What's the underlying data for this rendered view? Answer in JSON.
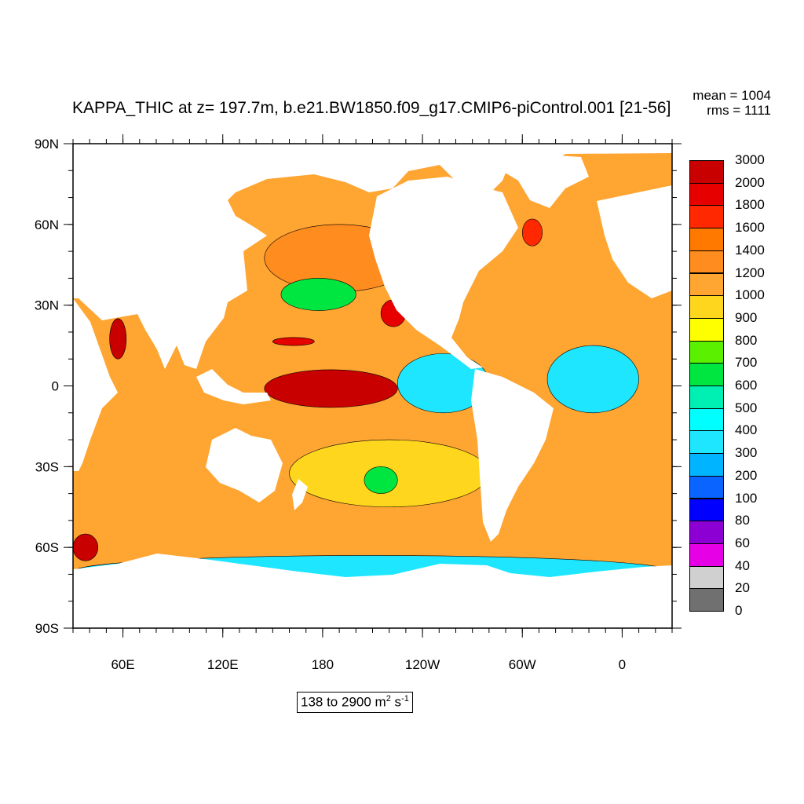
{
  "title": "KAPPA_THIC at z= 197.7m, b.e21.BW1850.f09_g17.CMIP6-piControl.001 [21-56]",
  "stats": {
    "mean": "mean = 1004",
    "rms": "rms = 1111"
  },
  "range_label": {
    "prefix": "138 to 2900 m",
    "exp1": "2",
    "mid": " s",
    "exp2": "-1"
  },
  "colors": {
    "land": "#ffffff",
    "levels": [
      "#707070",
      "#d0d0d0",
      "#e600e6",
      "#8c00d4",
      "#0000ff",
      "#0a64ff",
      "#00b4ff",
      "#1ee6ff",
      "#00ffff",
      "#00f0b4",
      "#00e641",
      "#5af000",
      "#ffff00",
      "#ffd61e",
      "#ffa532",
      "#ff8c1e",
      "#ff7800",
      "#ff2800",
      "#e60000",
      "#c80000"
    ]
  },
  "chart_data": {
    "type": "heatmap",
    "projection": "cylindrical equidistant, centered 210E",
    "lon_range": [
      30,
      390
    ],
    "lat_range": [
      -90,
      90
    ],
    "x_ticks": [
      "60E",
      "120E",
      "180",
      "120W",
      "60W",
      "0"
    ],
    "x_tick_lons": [
      60,
      120,
      180,
      240,
      300,
      360
    ],
    "y_ticks": [
      "90N",
      "60N",
      "30N",
      "0",
      "30S",
      "60S",
      "90S"
    ],
    "y_tick_lats": [
      90,
      60,
      30,
      0,
      -30,
      -60,
      -90
    ],
    "legend_levels": [
      "3000",
      "2000",
      "1800",
      "1600",
      "1400",
      "1200",
      "1000",
      "900",
      "800",
      "700",
      "600",
      "500",
      "400",
      "300",
      "200",
      "100",
      "80",
      "60",
      "40",
      "20",
      "0"
    ],
    "units": "m2 s-1",
    "regions": [
      {
        "name": "equatorial-pacific-max",
        "level": 19,
        "lon": [
          145,
          225
        ],
        "lat": [
          -8,
          6
        ]
      },
      {
        "name": "northeast-pacific-max",
        "level": 18,
        "lon": [
          215,
          230
        ],
        "lat": [
          22,
          32
        ]
      },
      {
        "name": "north-pacific-red-band",
        "level": 18,
        "lon": [
          150,
          175
        ],
        "lat": [
          15,
          18
        ]
      },
      {
        "name": "arabian-sea-max",
        "level": 19,
        "lon": [
          52,
          62
        ],
        "lat": [
          10,
          25
        ]
      },
      {
        "name": "southern-ocean-max",
        "level": 19,
        "lon": [
          30,
          45
        ],
        "lat": [
          -65,
          -55
        ]
      },
      {
        "name": "labrador-sea-max",
        "level": 17,
        "lon": [
          300,
          312
        ],
        "lat": [
          52,
          62
        ]
      },
      {
        "name": "north-pacific-subpolar",
        "level": 15,
        "lon": [
          145,
          235
        ],
        "lat": [
          35,
          60
        ]
      },
      {
        "name": "south-pacific-subtropical",
        "level": 13,
        "lon": [
          160,
          280
        ],
        "lat": [
          -45,
          -20
        ]
      },
      {
        "name": "south-pacific-green-pool",
        "level": 10,
        "lon": [
          205,
          225
        ],
        "lat": [
          -40,
          -30
        ]
      },
      {
        "name": "north-pacific-green-band",
        "level": 10,
        "lon": [
          155,
          200
        ],
        "lat": [
          28,
          40
        ]
      },
      {
        "name": "eastern-tropical-pacific",
        "level": 7,
        "lon": [
          225,
          280
        ],
        "lat": [
          -10,
          12
        ]
      },
      {
        "name": "tropical-atlantic",
        "level": 7,
        "lon": [
          315,
          370
        ],
        "lat": [
          -10,
          15
        ]
      },
      {
        "name": "antarctic-margin",
        "level": 7,
        "lon": [
          30,
          390
        ],
        "lat": [
          -75,
          -63
        ]
      }
    ]
  }
}
